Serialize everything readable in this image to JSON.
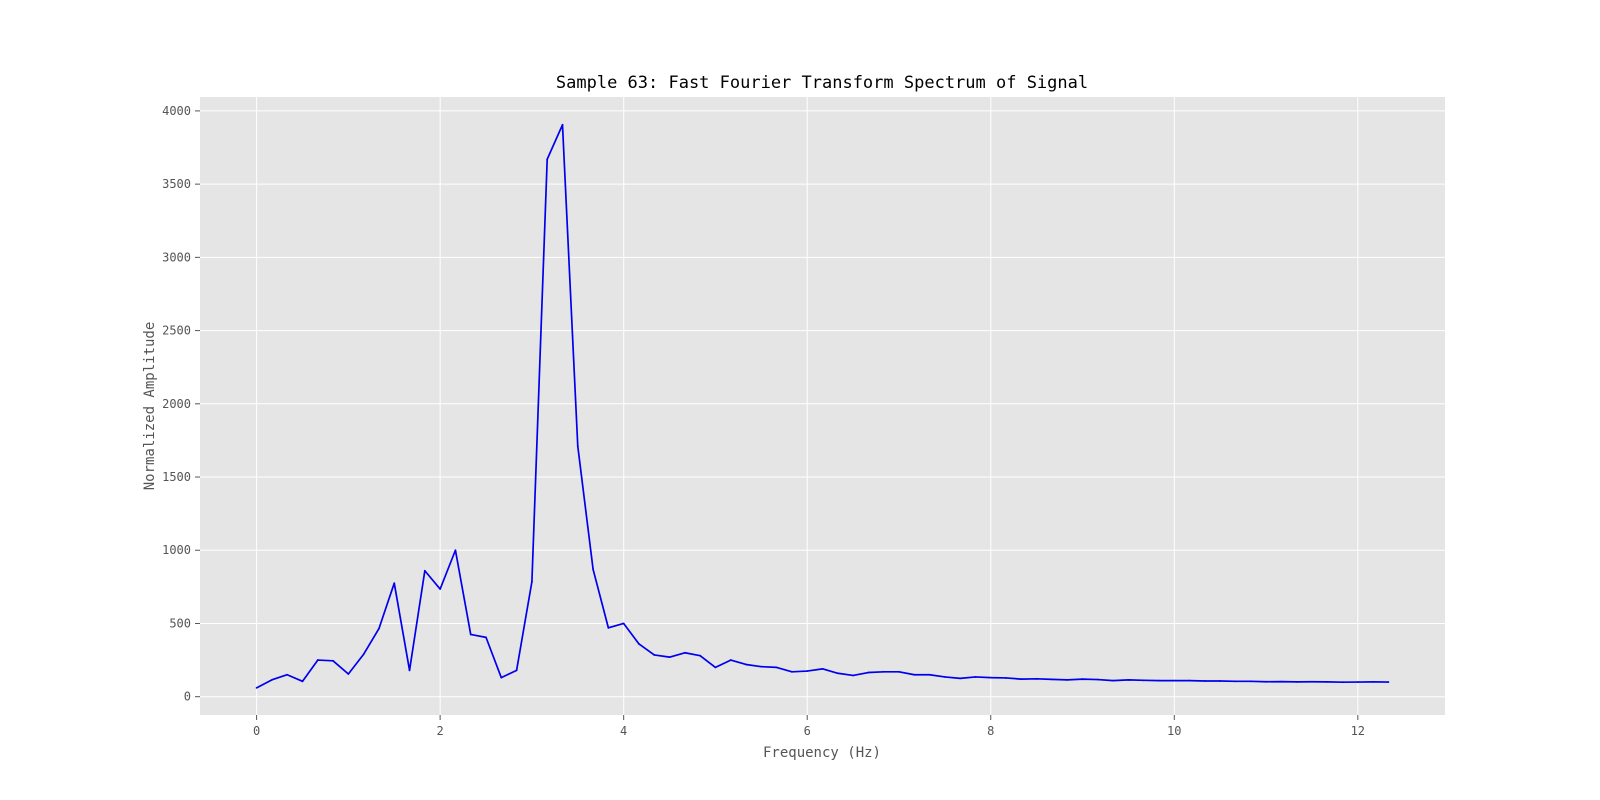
{
  "chart_data": {
    "type": "line",
    "title": "Sample 63: Fast Fourier Transform Spectrum of Signal",
    "xlabel": "Frequency (Hz)",
    "ylabel": "Normalized Amplitude",
    "xlim": [
      -0.6167,
      12.95
    ],
    "ylim": [
      -125,
      4095
    ],
    "x_ticks": [
      0,
      2,
      4,
      6,
      8,
      10,
      12
    ],
    "y_ticks": [
      0,
      500,
      1000,
      1500,
      2000,
      2500,
      3000,
      3500,
      4000
    ],
    "grid": true,
    "legend": "none",
    "colors": {
      "plot_background": "#e5e5e5",
      "grid": "#ffffff",
      "line": "#0000ee",
      "tick_text": "#555555",
      "title_text": "#000000"
    },
    "series": [
      {
        "x": [
          0,
          0.1667,
          0.3333,
          0.5,
          0.6667,
          0.8333,
          1.0,
          1.1667,
          1.3333,
          1.5,
          1.6667,
          1.8333,
          2.0,
          2.1667,
          2.3333,
          2.5,
          2.6667,
          2.8333,
          3.0,
          3.1667,
          3.3333,
          3.5,
          3.6667,
          3.8333,
          4.0,
          4.1667,
          4.3333,
          4.5,
          4.6667,
          4.8333,
          5.0,
          5.1667,
          5.3333,
          5.5,
          5.6667,
          5.8333,
          6.0,
          6.1667,
          6.3333,
          6.5,
          6.6667,
          6.8333,
          7.0,
          7.1667,
          7.3333,
          7.5,
          7.6667,
          7.8333,
          8.0,
          8.1667,
          8.3333,
          8.5,
          8.6667,
          8.8333,
          9.0,
          9.1667,
          9.3333,
          9.5,
          9.6667,
          9.8333,
          10.0,
          10.1667,
          10.3333,
          10.5,
          10.6667,
          10.8333,
          11.0,
          11.1667,
          11.3333,
          11.5,
          11.6667,
          11.8333,
          12.0,
          12.1667,
          12.3333
        ],
        "y": [
          60,
          115,
          150,
          105,
          250,
          245,
          155,
          290,
          465,
          775,
          180,
          860,
          735,
          1000,
          425,
          405,
          130,
          180,
          785,
          3670,
          3905,
          1710,
          870,
          470,
          500,
          360,
          285,
          270,
          300,
          280,
          200,
          250,
          220,
          205,
          200,
          170,
          175,
          190,
          160,
          145,
          165,
          170,
          170,
          150,
          150,
          135,
          125,
          135,
          130,
          128,
          120,
          122,
          118,
          115,
          120,
          117,
          110,
          115,
          112,
          110,
          110,
          110,
          107,
          107,
          105,
          105,
          102,
          103,
          101,
          102,
          101,
          99,
          100,
          101,
          100
        ]
      }
    ]
  }
}
